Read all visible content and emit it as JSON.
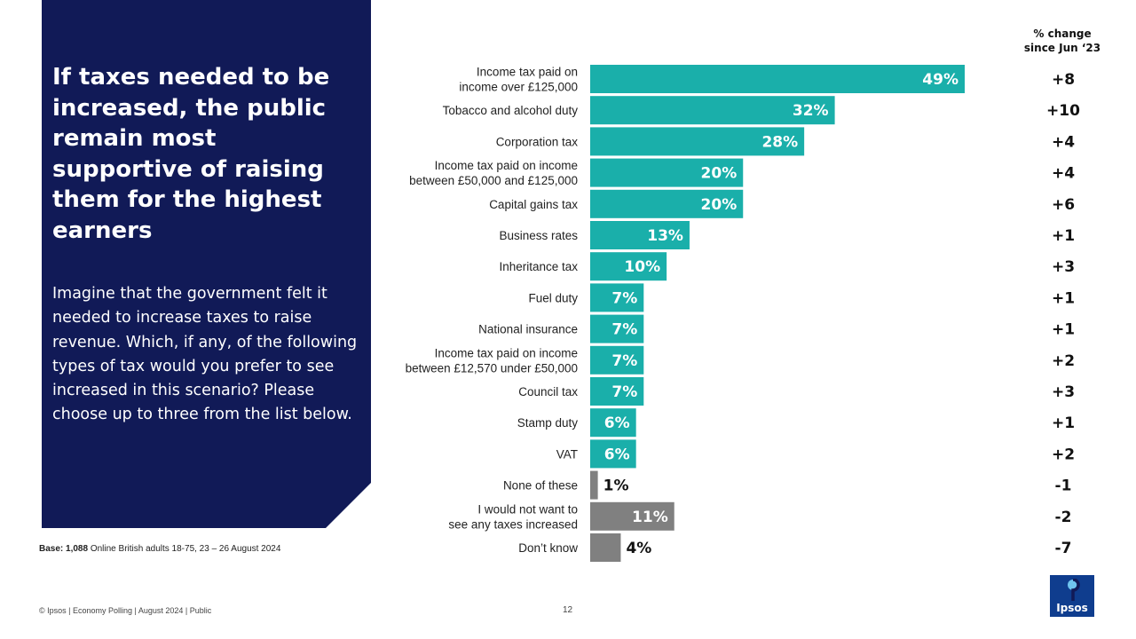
{
  "headline": "If taxes needed to be increased, the public remain most supportive of raising them for the highest earners",
  "question": "Imagine that the government  felt it needed to increase taxes to raise revenue. Which,  if any, of the following  types of tax would you prefer to see increased in this scenario? Please choose up to three from the list below.",
  "base": {
    "label": "Base:",
    "count": "1,088",
    "detail": " Online British adults 18-75, 23 – 26 August 2024"
  },
  "footer": "© Ipsos | Economy Polling | August 2024 | Public",
  "page_number": "12",
  "logo_text": "Ipsos",
  "change_header": [
    "% change",
    "since Jun ‘23"
  ],
  "colors": {
    "panel": "#111a57",
    "teal": "#1aafaa",
    "grey": "#808080",
    "logo": "#0f3d8e"
  },
  "chart_data": {
    "type": "bar",
    "orientation": "horizontal",
    "unit": "%",
    "categories": [
      [
        "Income tax paid on",
        "income over £125,000"
      ],
      [
        "Tobacco and alcohol duty"
      ],
      [
        "Corporation tax"
      ],
      [
        "Income tax paid on income",
        "between £50,000 and £125,000"
      ],
      [
        "Capital gains tax"
      ],
      [
        "Business rates"
      ],
      [
        "Inheritance tax"
      ],
      [
        "Fuel duty"
      ],
      [
        "National insurance"
      ],
      [
        "Income tax paid on income",
        "between £12,570 under £50,000"
      ],
      [
        "Council tax"
      ],
      [
        "Stamp duty"
      ],
      [
        "VAT"
      ],
      [
        "None of these"
      ],
      [
        "I would not want to",
        "see any taxes increased"
      ],
      [
        "Don’t know"
      ]
    ],
    "values": [
      49,
      32,
      28,
      20,
      20,
      13,
      10,
      7,
      7,
      7,
      7,
      6,
      6,
      1,
      11,
      4
    ],
    "labels": [
      "49%",
      "32%",
      "28%",
      "20%",
      "20%",
      "13%",
      "10%",
      "7%",
      "7%",
      "7%",
      "7%",
      "6%",
      "6%",
      "1%",
      "11%",
      "4%"
    ],
    "change": [
      "+8",
      "+10",
      "+4",
      "+4",
      "+6",
      "+1",
      "+3",
      "+1",
      "+1",
      "+2",
      "+3",
      "+1",
      "+2",
      "-1",
      "-2",
      "-7"
    ],
    "bar_color": [
      "teal",
      "teal",
      "teal",
      "teal",
      "teal",
      "teal",
      "teal",
      "teal",
      "teal",
      "teal",
      "teal",
      "teal",
      "teal",
      "grey",
      "grey",
      "grey"
    ],
    "xlim": [
      0,
      49
    ]
  }
}
